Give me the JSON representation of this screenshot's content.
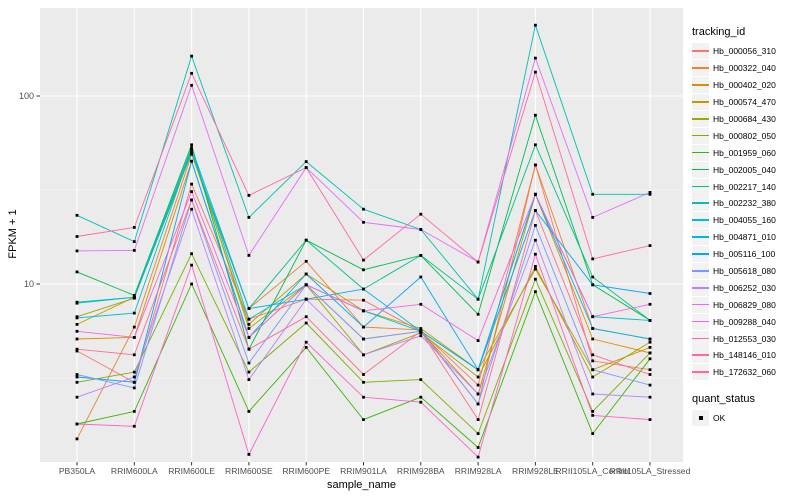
{
  "chart_data": {
    "type": "line",
    "title": "",
    "xlabel": "sample_name",
    "ylabel": "FPKM + 1",
    "y_scale": "log10",
    "y_ticks": [
      100,
      10
    ],
    "y_minor_gridlines": [
      31.62,
      3.162
    ],
    "ylim": [
      1.07,
      295
    ],
    "grid": true,
    "panel_bg": "#EBEBEB",
    "grid_color": "#FFFFFF",
    "point_shape": "square",
    "point_color": "#000000",
    "categories": [
      "PB350LA",
      "RRIM600LA",
      "RRIM600LE",
      "RRIM600SE",
      "RRIM600PE",
      "RRIM901LA",
      "RRIM928BA",
      "RRIM928LA",
      "RRIM928LE",
      "RRII105LA_Control",
      "RRII105LA_Stressed"
    ],
    "legend": {
      "title": "tracking_id",
      "position": "right"
    },
    "quant_status": {
      "title": "quant_status",
      "items": [
        {
          "label": "OK",
          "shape": "square",
          "color": "#000000"
        }
      ]
    },
    "series": [
      {
        "name": "Hb_000056_310",
        "color": "#F8766D",
        "values": [
          4.4,
          3.0,
          34,
          6.5,
          8.3,
          8.2,
          5.6,
          2.9,
          43,
          3.9,
          3.5
        ]
      },
      {
        "name": "Hb_000322_040",
        "color": "#EA8331",
        "values": [
          1.5,
          5.9,
          49,
          7.4,
          13.2,
          5.9,
          5.7,
          2.3,
          43,
          5.8,
          5.1
        ]
      },
      {
        "name": "Hb_000402_020",
        "color": "#D89000",
        "values": [
          5.1,
          5.2,
          45,
          5.2,
          9.9,
          5.1,
          5.6,
          2.6,
          30,
          5.1,
          4.3
        ]
      },
      {
        "name": "Hb_000574_470",
        "color": "#C09B00",
        "values": [
          6.1,
          8.5,
          50,
          6.1,
          11.3,
          7.2,
          5.8,
          3.5,
          12,
          3.5,
          4.6
        ]
      },
      {
        "name": "Hb_000684_430",
        "color": "#A3A500",
        "values": [
          6.7,
          8.4,
          52,
          5.8,
          9.9,
          4.2,
          5.5,
          3.2,
          12.4,
          3.2,
          4.9
        ]
      },
      {
        "name": "Hb_000802_050",
        "color": "#7CAE00",
        "values": [
          3.0,
          3.4,
          14.5,
          3.4,
          6.2,
          3.0,
          3.1,
          1.6,
          10.6,
          2.1,
          4.3
        ]
      },
      {
        "name": "Hb_001959_060",
        "color": "#39B600",
        "values": [
          1.8,
          2.1,
          10,
          2.1,
          4.6,
          1.9,
          2.5,
          1.35,
          9.1,
          1.6,
          4.0
        ]
      },
      {
        "name": "Hb_002005_040",
        "color": "#00BB4E",
        "values": [
          11.6,
          8.7,
          55,
          4.5,
          17.1,
          11.9,
          14.2,
          6.9,
          79,
          9.9,
          6.4
        ]
      },
      {
        "name": "Hb_002217_140",
        "color": "#00C087",
        "values": [
          8.0,
          8.5,
          50,
          7.4,
          17.1,
          9.4,
          14.2,
          8.3,
          55,
          10.9,
          6.4
        ]
      },
      {
        "name": "Hb_002232_380",
        "color": "#00C0B2",
        "values": [
          23.2,
          16.8,
          163,
          22.6,
          44.8,
          25,
          19.5,
          8.3,
          238,
          30,
          30
        ]
      },
      {
        "name": "Hb_004055_160",
        "color": "#00BDD4",
        "values": [
          6.6,
          7.0,
          52,
          6.5,
          9.9,
          7.2,
          5.6,
          3.5,
          30,
          6.7,
          6.4
        ]
      },
      {
        "name": "Hb_004871_010",
        "color": "#00B5EC",
        "values": [
          7.9,
          8.5,
          53,
          7.4,
          8.3,
          9.4,
          5.6,
          3.5,
          30,
          5.8,
          5.1
        ]
      },
      {
        "name": "Hb_005116_100",
        "color": "#00A7FC",
        "values": [
          3.2,
          3.0,
          45,
          5.2,
          11.3,
          5.9,
          10.9,
          3.5,
          24.6,
          9.9,
          8.9
        ]
      },
      {
        "name": "Hb_005618_080",
        "color": "#7F96FF",
        "values": [
          3.3,
          2.8,
          28,
          3.8,
          9.9,
          5.1,
          5.6,
          2.3,
          20.5,
          3.5,
          2.9
        ]
      },
      {
        "name": "Hb_006252_030",
        "color": "#BC81FF",
        "values": [
          2.5,
          3.2,
          25,
          3.1,
          8.3,
          4.2,
          5.3,
          2.6,
          17.1,
          2.6,
          2.5
        ]
      },
      {
        "name": "Hb_006829_080",
        "color": "#E26EF7",
        "values": [
          15.0,
          15.1,
          114,
          14.2,
          41.6,
          21.3,
          19.5,
          13.1,
          159,
          22.6,
          30.7
        ]
      },
      {
        "name": "Hb_009288_040",
        "color": "#F763E0",
        "values": [
          5.6,
          5.2,
          31,
          5.2,
          9.9,
          7.2,
          7.8,
          5.0,
          30,
          6.7,
          7.8
        ]
      },
      {
        "name": "Hb_012553_030",
        "color": "#FF61C7",
        "values": [
          1.8,
          1.75,
          12.6,
          1.24,
          4.9,
          2.5,
          2.35,
          1.2,
          14.4,
          2.0,
          1.9
        ]
      },
      {
        "name": "Hb_148146_010",
        "color": "#FF67A9",
        "values": [
          17.9,
          20,
          132,
          29.6,
          41.6,
          13.4,
          23.5,
          13.1,
          134,
          13.6,
          16
        ]
      },
      {
        "name": "Hb_172632_060",
        "color": "#FF6C91",
        "values": [
          4.5,
          4.2,
          28,
          4.5,
          6.7,
          3.3,
          5.6,
          1.9,
          24.6,
          4.2,
          3.3
        ]
      }
    ]
  }
}
